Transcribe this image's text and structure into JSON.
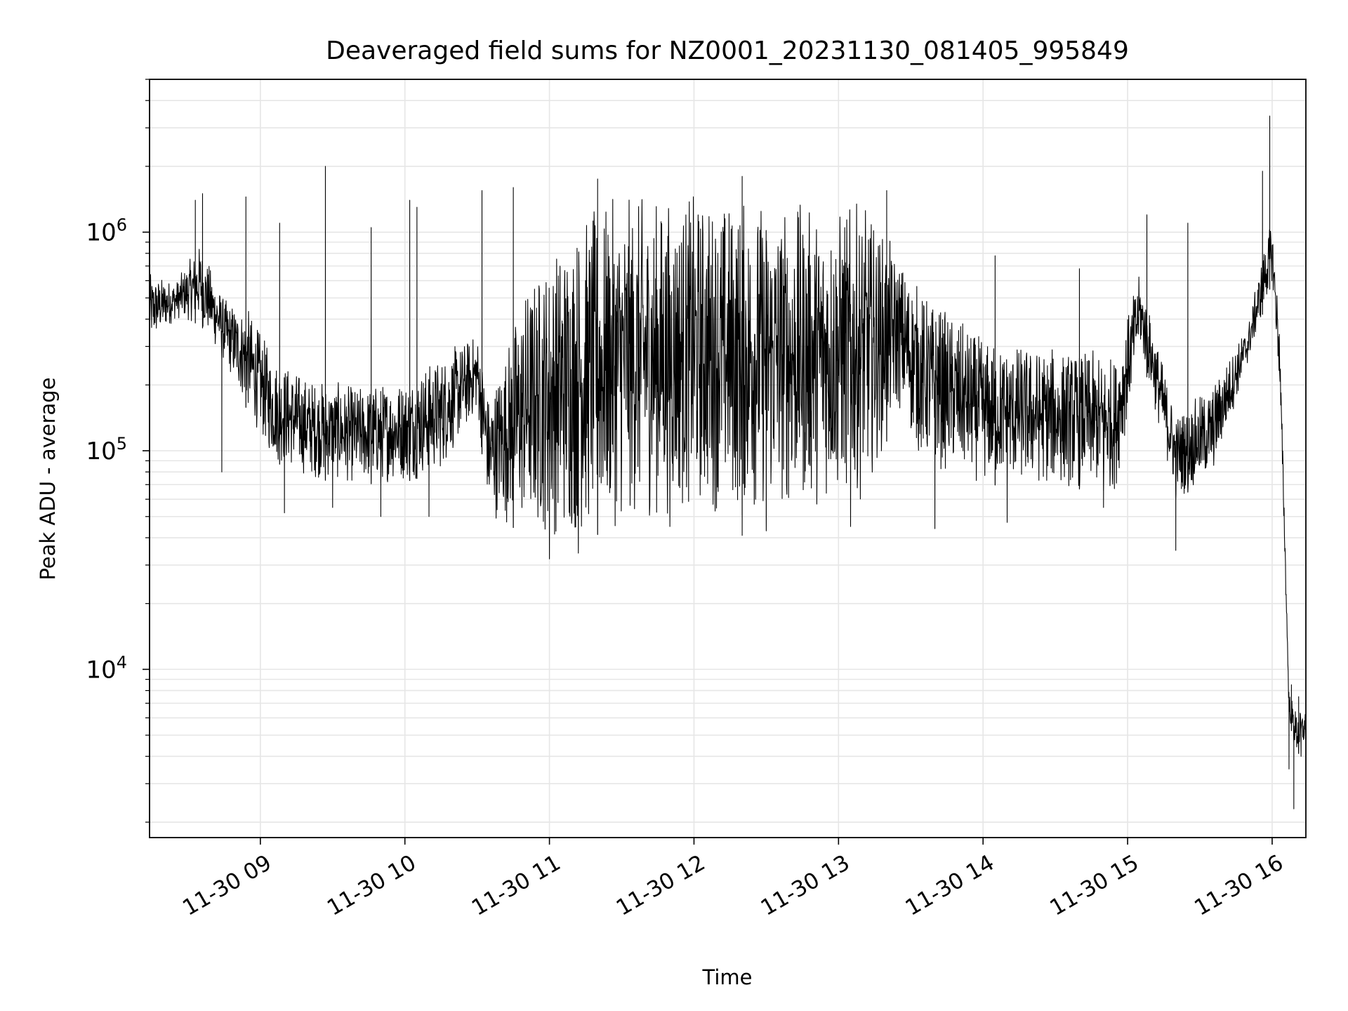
{
  "chart_data": {
    "type": "line",
    "title": "Deaveraged field sums for NZ0001_20231130_081405_995849",
    "xlabel": "Time",
    "ylabel": "Peak ADU - average",
    "yscale": "log",
    "xlim": [
      "2023-11-30 08:14",
      "2023-11-30 16:14"
    ],
    "ylim": [
      1700,
      5000000
    ],
    "x_ticks": [
      {
        "value": "2023-11-30 09:00",
        "label": "11-30 09"
      },
      {
        "value": "2023-11-30 10:00",
        "label": "11-30 10"
      },
      {
        "value": "2023-11-30 11:00",
        "label": "11-30 11"
      },
      {
        "value": "2023-11-30 12:00",
        "label": "11-30 12"
      },
      {
        "value": "2023-11-30 13:00",
        "label": "11-30 13"
      },
      {
        "value": "2023-11-30 14:00",
        "label": "11-30 14"
      },
      {
        "value": "2023-11-30 15:00",
        "label": "11-30 15"
      },
      {
        "value": "2023-11-30 16:00",
        "label": "11-30 16"
      }
    ],
    "y_ticks": [
      {
        "value": 10000,
        "base": "10",
        "exp": "4"
      },
      {
        "value": 100000,
        "base": "10",
        "exp": "5"
      },
      {
        "value": 1000000,
        "base": "10",
        "exp": "6"
      }
    ],
    "grid": true,
    "line_color": "#000000",
    "series": [
      {
        "lower_envelope": [
          [
            "2023-11-30 08:14",
            300000
          ],
          [
            "2023-11-30 08:25",
            400000
          ],
          [
            "2023-11-30 08:35",
            380000
          ],
          [
            "2023-11-30 08:45",
            250000
          ],
          [
            "2023-11-30 08:55",
            150000
          ],
          [
            "2023-11-30 09:05",
            90000
          ],
          [
            "2023-11-30 09:20",
            75000
          ],
          [
            "2023-11-30 09:40",
            70000
          ],
          [
            "2023-11-30 10:00",
            72000
          ],
          [
            "2023-11-30 10:15",
            80000
          ],
          [
            "2023-11-30 10:30",
            150000
          ],
          [
            "2023-11-30 10:35",
            50000
          ],
          [
            "2023-11-30 10:50",
            42000
          ],
          [
            "2023-11-30 11:10",
            38000
          ],
          [
            "2023-11-30 11:30",
            45000
          ],
          [
            "2023-11-30 12:00",
            52000
          ],
          [
            "2023-11-30 12:30",
            50000
          ],
          [
            "2023-11-30 12:50",
            55000
          ],
          [
            "2023-11-30 13:10",
            60000
          ],
          [
            "2023-11-30 13:25",
            150000
          ],
          [
            "2023-11-30 13:35",
            85000
          ],
          [
            "2023-11-30 14:00",
            70000
          ],
          [
            "2023-11-30 14:30",
            68000
          ],
          [
            "2023-11-30 14:55",
            65000
          ],
          [
            "2023-11-30 15:05",
            300000
          ],
          [
            "2023-11-30 15:20",
            60000
          ],
          [
            "2023-11-30 15:35",
            75000
          ],
          [
            "2023-11-30 15:50",
            250000
          ],
          [
            "2023-11-30 15:58",
            500000
          ],
          [
            "2023-11-30 16:00",
            600000
          ],
          [
            "2023-11-30 16:03",
            200000
          ],
          [
            "2023-11-30 16:05",
            40000
          ],
          [
            "2023-11-30 16:07",
            6000
          ],
          [
            "2023-11-30 16:10",
            4000
          ],
          [
            "2023-11-30 16:14",
            4500
          ]
        ],
        "upper_envelope": [
          [
            "2023-11-30 08:14",
            650000
          ],
          [
            "2023-11-30 08:25",
            600000
          ],
          [
            "2023-11-30 08:35",
            900000
          ],
          [
            "2023-11-30 08:45",
            500000
          ],
          [
            "2023-11-30 08:55",
            450000
          ],
          [
            "2023-11-30 09:05",
            280000
          ],
          [
            "2023-11-30 09:20",
            220000
          ],
          [
            "2023-11-30 09:40",
            200000
          ],
          [
            "2023-11-30 10:00",
            220000
          ],
          [
            "2023-11-30 10:15",
            280000
          ],
          [
            "2023-11-30 10:30",
            350000
          ],
          [
            "2023-11-30 10:35",
            180000
          ],
          [
            "2023-11-30 10:50",
            600000
          ],
          [
            "2023-11-30 11:10",
            1200000
          ],
          [
            "2023-11-30 11:30",
            1500000
          ],
          [
            "2023-11-30 12:00",
            1550000
          ],
          [
            "2023-11-30 12:30",
            1500000
          ],
          [
            "2023-11-30 12:50",
            1350000
          ],
          [
            "2023-11-30 13:10",
            1400000
          ],
          [
            "2023-11-30 13:25",
            800000
          ],
          [
            "2023-11-30 13:35",
            550000
          ],
          [
            "2023-11-30 14:00",
            330000
          ],
          [
            "2023-11-30 14:30",
            300000
          ],
          [
            "2023-11-30 14:55",
            280000
          ],
          [
            "2023-11-30 15:05",
            650000
          ],
          [
            "2023-11-30 15:20",
            150000
          ],
          [
            "2023-11-30 15:35",
            200000
          ],
          [
            "2023-11-30 15:50",
            380000
          ],
          [
            "2023-11-30 15:58",
            1000000
          ],
          [
            "2023-11-30 16:00",
            1100000
          ],
          [
            "2023-11-30 16:03",
            400000
          ],
          [
            "2023-11-30 16:05",
            60000
          ],
          [
            "2023-11-30 16:07",
            8000
          ],
          [
            "2023-11-30 16:10",
            6500
          ],
          [
            "2023-11-30 16:14",
            6500
          ]
        ],
        "spikes": [
          [
            "2023-11-30 08:33",
            1400000
          ],
          [
            "2023-11-30 08:36",
            1500000
          ],
          [
            "2023-11-30 08:54",
            1450000
          ],
          [
            "2023-11-30 09:08",
            1100000
          ],
          [
            "2023-11-30 09:27",
            2000000
          ],
          [
            "2023-11-30 09:46",
            1050000
          ],
          [
            "2023-11-30 10:02",
            1400000
          ],
          [
            "2023-11-30 10:05",
            1300000
          ],
          [
            "2023-11-30 10:32",
            1550000
          ],
          [
            "2023-11-30 10:45",
            1600000
          ],
          [
            "2023-11-30 11:20",
            1750000
          ],
          [
            "2023-11-30 12:20",
            1800000
          ],
          [
            "2023-11-30 13:20",
            1550000
          ],
          [
            "2023-11-30 14:05",
            780000
          ],
          [
            "2023-11-30 14:40",
            680000
          ],
          [
            "2023-11-30 15:08",
            1200000
          ],
          [
            "2023-11-30 15:25",
            1100000
          ],
          [
            "2023-11-30 15:56",
            1900000
          ],
          [
            "2023-11-30 15:59",
            3400000
          ],
          [
            "2023-11-30 16:08",
            8500
          ],
          [
            "2023-11-30 16:11",
            7500
          ]
        ],
        "dips": [
          [
            "2023-11-30 08:44",
            80000
          ],
          [
            "2023-11-30 09:10",
            52000
          ],
          [
            "2023-11-30 09:30",
            55000
          ],
          [
            "2023-11-30 09:50",
            50000
          ],
          [
            "2023-11-30 10:10",
            50000
          ],
          [
            "2023-11-30 11:00",
            32000
          ],
          [
            "2023-11-30 11:12",
            34000
          ],
          [
            "2023-11-30 11:50",
            45000
          ],
          [
            "2023-11-30 12:20",
            41000
          ],
          [
            "2023-11-30 12:30",
            43000
          ],
          [
            "2023-11-30 13:05",
            45000
          ],
          [
            "2023-11-30 13:40",
            44000
          ],
          [
            "2023-11-30 14:10",
            47000
          ],
          [
            "2023-11-30 14:50",
            55000
          ],
          [
            "2023-11-30 15:20",
            35000
          ],
          [
            "2023-11-30 16:07",
            3500
          ],
          [
            "2023-11-30 16:09",
            2300
          ],
          [
            "2023-11-30 16:12",
            4000
          ]
        ]
      }
    ]
  }
}
